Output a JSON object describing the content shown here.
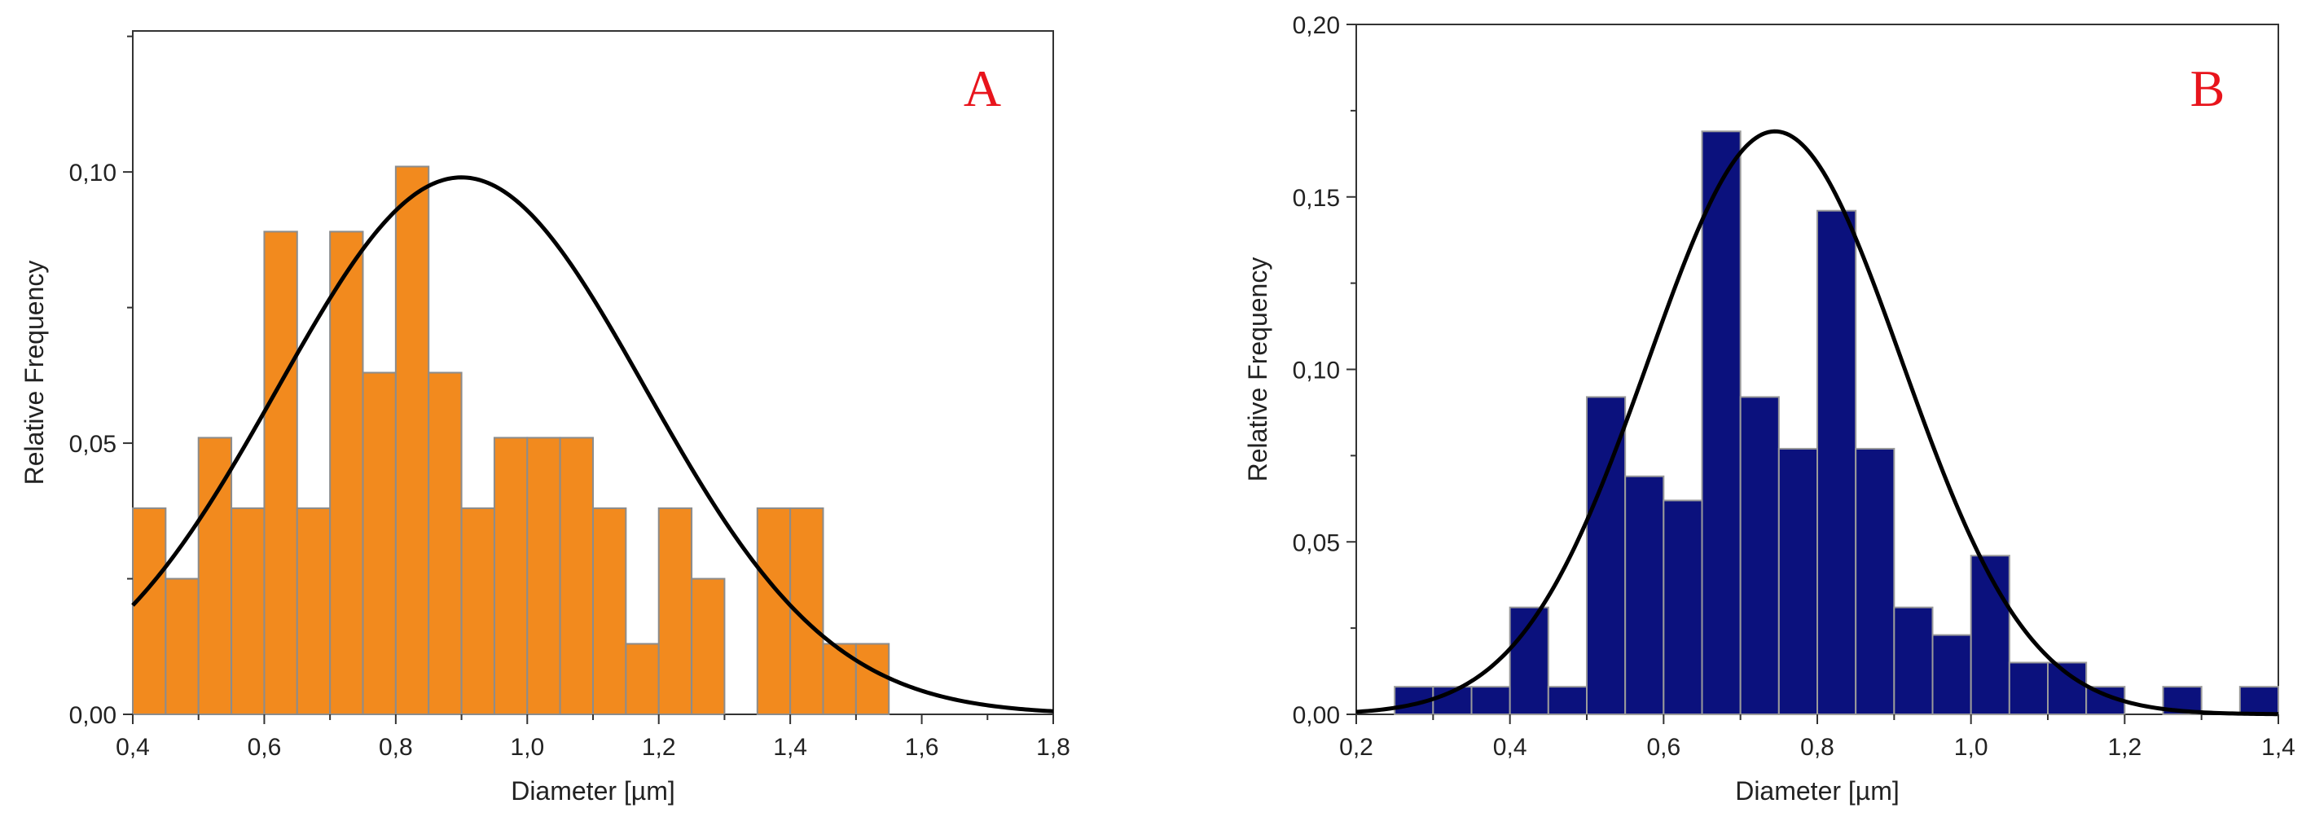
{
  "chart_data": [
    {
      "type": "bar",
      "panel_label": "A",
      "title": "",
      "xlabel": "Diameter [µm]",
      "ylabel": "Relative Frequency",
      "xlim": [
        0.4,
        1.8
      ],
      "ylim": [
        0,
        0.126
      ],
      "xticks": [
        {
          "value": 0.4,
          "label": "0,4"
        },
        {
          "value": 0.6,
          "label": "0,6"
        },
        {
          "value": 0.8,
          "label": "0,8"
        },
        {
          "value": 1.0,
          "label": "1,0"
        },
        {
          "value": 1.2,
          "label": "1,2"
        },
        {
          "value": 1.4,
          "label": "1,4"
        },
        {
          "value": 1.6,
          "label": "1,6"
        },
        {
          "value": 1.8,
          "label": "1,8"
        }
      ],
      "yticks": [
        {
          "value": 0.0,
          "label": "0,00"
        },
        {
          "value": 0.05,
          "label": "0,05"
        },
        {
          "value": 0.1,
          "label": "0,10"
        }
      ],
      "bin_width": 0.05,
      "bins": [
        {
          "x0": 0.4,
          "value": 0.038
        },
        {
          "x0": 0.45,
          "value": 0.025
        },
        {
          "x0": 0.5,
          "value": 0.051
        },
        {
          "x0": 0.55,
          "value": 0.038
        },
        {
          "x0": 0.6,
          "value": 0.089
        },
        {
          "x0": 0.65,
          "value": 0.038
        },
        {
          "x0": 0.7,
          "value": 0.089
        },
        {
          "x0": 0.75,
          "value": 0.063
        },
        {
          "x0": 0.8,
          "value": 0.101
        },
        {
          "x0": 0.85,
          "value": 0.063
        },
        {
          "x0": 0.9,
          "value": 0.038
        },
        {
          "x0": 0.95,
          "value": 0.051
        },
        {
          "x0": 1.0,
          "value": 0.051
        },
        {
          "x0": 1.05,
          "value": 0.051
        },
        {
          "x0": 1.1,
          "value": 0.038
        },
        {
          "x0": 1.15,
          "value": 0.013
        },
        {
          "x0": 1.2,
          "value": 0.038
        },
        {
          "x0": 1.25,
          "value": 0.025
        },
        {
          "x0": 1.35,
          "value": 0.038
        },
        {
          "x0": 1.4,
          "value": 0.038
        },
        {
          "x0": 1.45,
          "value": 0.013
        },
        {
          "x0": 1.5,
          "value": 0.013
        }
      ],
      "fit_curve": {
        "type": "gaussian",
        "mean": 0.9,
        "sd": 0.28,
        "peak": 0.099
      },
      "bar_color": "#f28a1e",
      "bar_edge_color": "#8c8c8c",
      "curve_color": "#000000",
      "label_color": "#e8141c"
    },
    {
      "type": "bar",
      "panel_label": "B",
      "title": "",
      "xlabel": "Diameter [µm]",
      "ylabel": "Relative Frequency",
      "xlim": [
        0.2,
        1.4
      ],
      "ylim": [
        0,
        0.2
      ],
      "xticks": [
        {
          "value": 0.2,
          "label": "0,2"
        },
        {
          "value": 0.4,
          "label": "0,4"
        },
        {
          "value": 0.6,
          "label": "0,6"
        },
        {
          "value": 0.8,
          "label": "0,8"
        },
        {
          "value": 1.0,
          "label": "1,0"
        },
        {
          "value": 1.2,
          "label": "1,2"
        },
        {
          "value": 1.4,
          "label": "1,4"
        }
      ],
      "yticks": [
        {
          "value": 0.0,
          "label": "0,00"
        },
        {
          "value": 0.05,
          "label": "0,05"
        },
        {
          "value": 0.1,
          "label": "0,10"
        },
        {
          "value": 0.15,
          "label": "0,15"
        },
        {
          "value": 0.2,
          "label": "0,20"
        }
      ],
      "bin_width": 0.05,
      "bins": [
        {
          "x0": 0.25,
          "value": 0.008
        },
        {
          "x0": 0.3,
          "value": 0.008
        },
        {
          "x0": 0.35,
          "value": 0.008
        },
        {
          "x0": 0.4,
          "value": 0.031
        },
        {
          "x0": 0.45,
          "value": 0.008
        },
        {
          "x0": 0.5,
          "value": 0.092
        },
        {
          "x0": 0.55,
          "value": 0.069
        },
        {
          "x0": 0.6,
          "value": 0.062
        },
        {
          "x0": 0.65,
          "value": 0.169
        },
        {
          "x0": 0.7,
          "value": 0.092
        },
        {
          "x0": 0.75,
          "value": 0.077
        },
        {
          "x0": 0.8,
          "value": 0.146
        },
        {
          "x0": 0.85,
          "value": 0.077
        },
        {
          "x0": 0.9,
          "value": 0.031
        },
        {
          "x0": 0.95,
          "value": 0.023
        },
        {
          "x0": 1.0,
          "value": 0.046
        },
        {
          "x0": 1.05,
          "value": 0.015
        },
        {
          "x0": 1.1,
          "value": 0.015
        },
        {
          "x0": 1.15,
          "value": 0.008
        },
        {
          "x0": 1.25,
          "value": 0.008
        },
        {
          "x0": 1.35,
          "value": 0.008
        }
      ],
      "fit_curve": {
        "type": "gaussian",
        "mean": 0.745,
        "sd": 0.165,
        "peak": 0.169
      },
      "bar_color": "#0b117d",
      "bar_edge_color": "#9a9a9a",
      "curve_color": "#000000",
      "label_color": "#e8141c"
    }
  ]
}
